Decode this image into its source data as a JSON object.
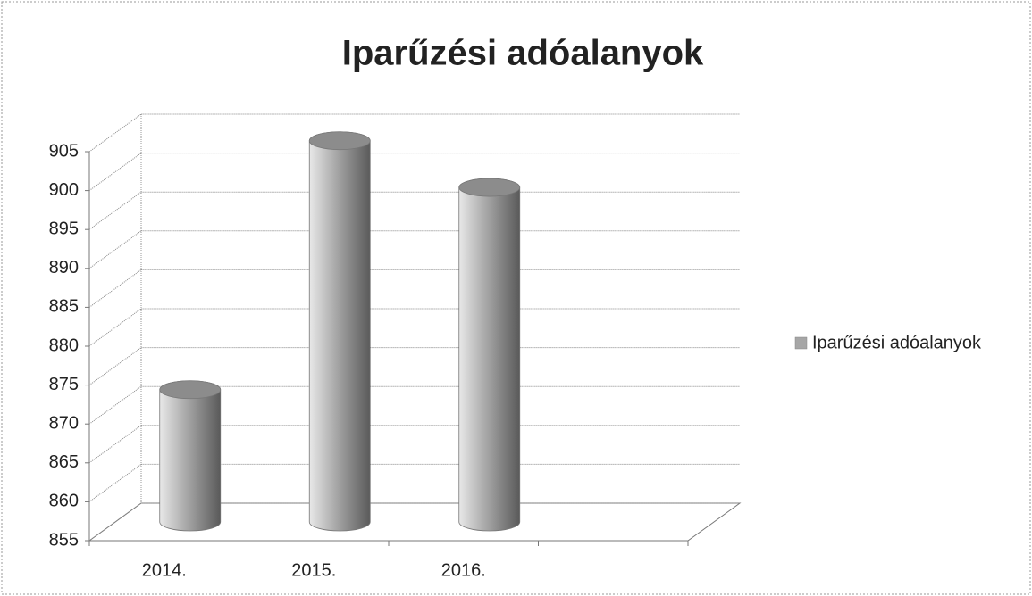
{
  "chart_data": {
    "type": "bar3d-cylinder",
    "title": "Iparűzési adóalanyok",
    "categories": [
      "2014.",
      "2015.",
      "2016.",
      null
    ],
    "series": [
      {
        "name": "Iparűzési adóalanyok",
        "color": "#a6a6a6",
        "values": [
          872,
          904,
          898,
          null
        ]
      }
    ],
    "ylim": [
      855,
      905
    ],
    "yticks": [
      855,
      860,
      865,
      870,
      875,
      880,
      885,
      890,
      895,
      900,
      905
    ],
    "grid": true,
    "legend": "right"
  }
}
